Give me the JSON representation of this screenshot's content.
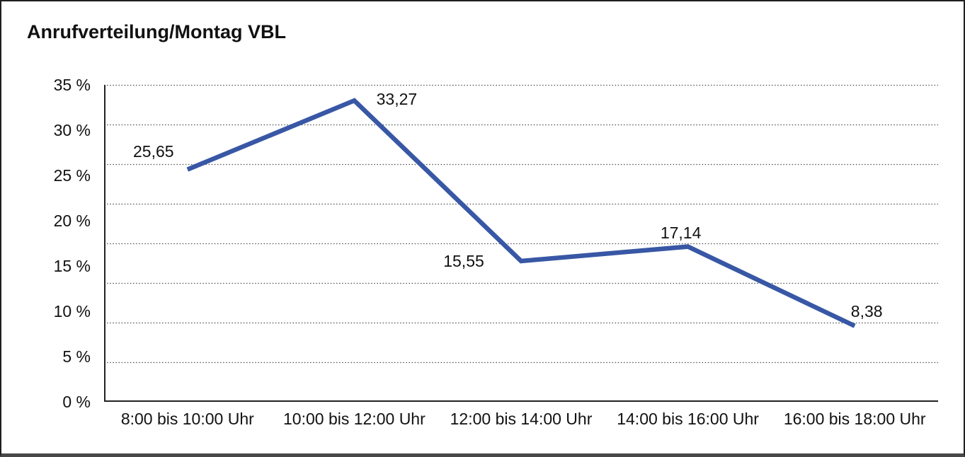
{
  "header": {
    "title": "Anrufverteilung/Montag VBL"
  },
  "chart_data": {
    "type": "line",
    "title": "Anrufverteilung/Montag VBL",
    "categories": [
      "8:00 bis 10:00 Uhr",
      "10:00 bis 12:00 Uhr",
      "12:00 bis 14:00 Uhr",
      "14:00 bis 16:00 Uhr",
      "16:00 bis 18:00 Uhr"
    ],
    "values": [
      25.65,
      33.27,
      15.55,
      17.14,
      8.38
    ],
    "value_labels": [
      "25,65",
      "33,27",
      "15,55",
      "17,14",
      "8,38"
    ],
    "xlabel": "",
    "ylabel": "",
    "ylim": [
      0,
      35
    ],
    "y_tick_values": [
      35,
      30,
      25,
      20,
      15,
      10,
      5,
      0
    ],
    "y_tick_labels": [
      "35 %",
      "30 %",
      "25 %",
      "20 %",
      "15 %",
      "10 %",
      "5 %",
      "0 %"
    ],
    "grid": "horizontal dotted lines, 8 equal intervals, on",
    "legend": "none",
    "colors": {
      "line": "#3857A5",
      "text": "#111111",
      "grid": "#4d4d4d",
      "axis": "#222222",
      "background": "#ffffff"
    }
  }
}
